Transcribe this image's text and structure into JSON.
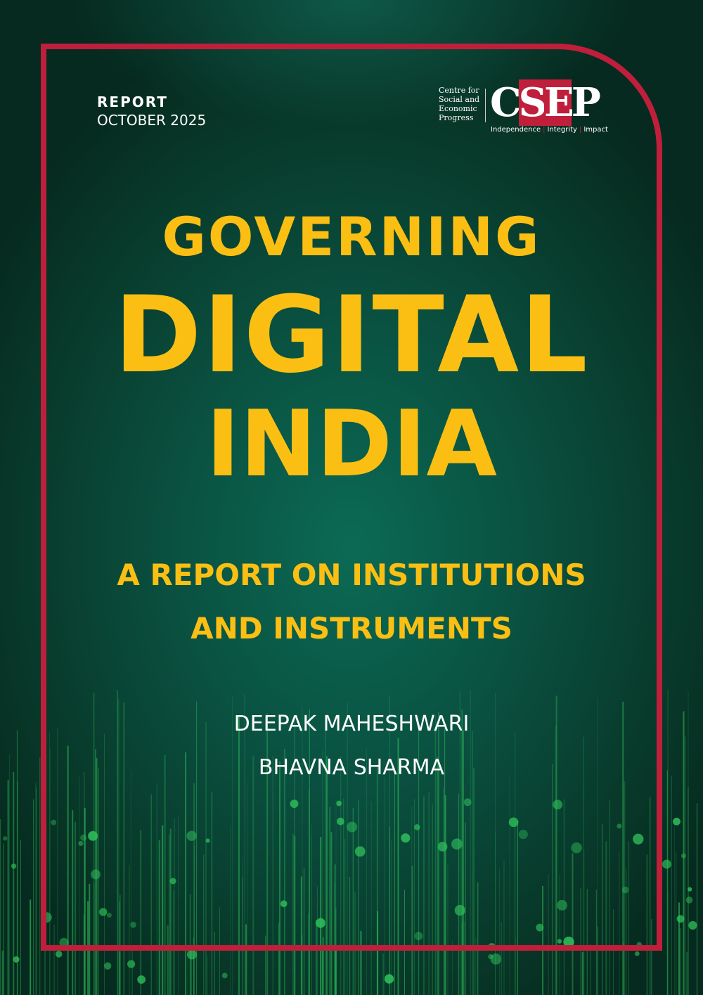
{
  "header": {
    "label": "REPORT",
    "date": "OCTOBER 2025"
  },
  "logo": {
    "org_lines": [
      "Centre for",
      "Social and",
      "Economic",
      "Progress"
    ],
    "acronym": "CSEP",
    "tagline": [
      "Independence",
      "Integrity",
      "Impact"
    ]
  },
  "title": {
    "line1": "GOVERNING",
    "line2": "DIGITAL",
    "line3": "INDIA"
  },
  "subtitle": {
    "line1": "A REPORT ON INSTITUTIONS",
    "line2": "AND INSTRUMENTS"
  },
  "authors": [
    "DEEPAK MAHESHWARI",
    "BHAVNA SHARMA"
  ],
  "colors": {
    "accent": "#fbbf14",
    "frame": "#c01f3c",
    "circuit": "#2fbf5a",
    "background": "#0a4f3f"
  }
}
